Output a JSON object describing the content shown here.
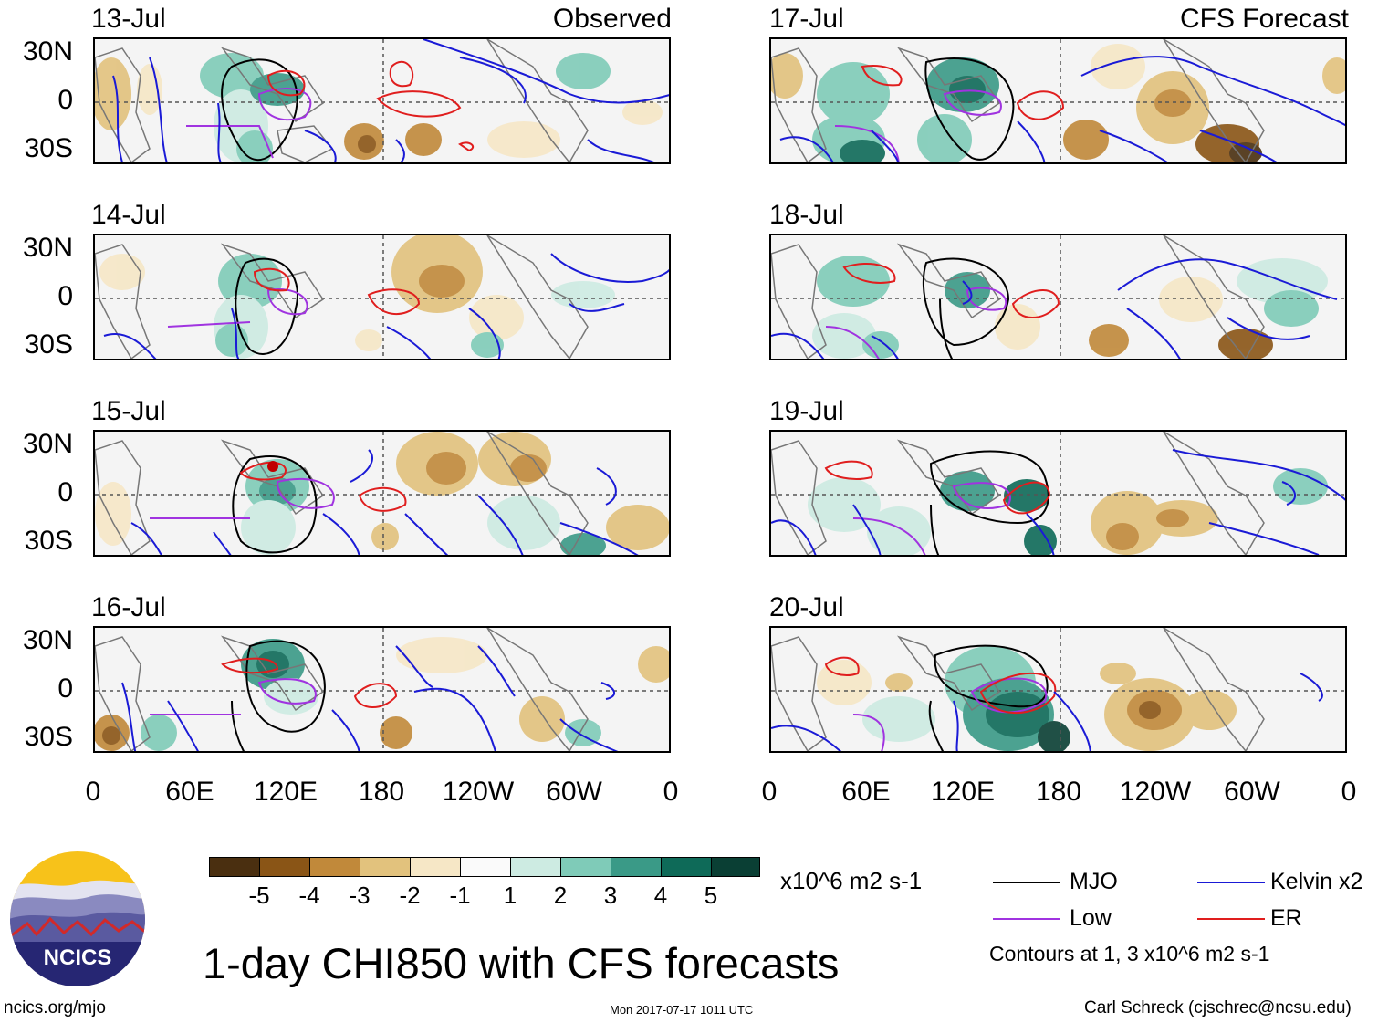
{
  "header": {
    "observed_label": "Observed",
    "forecast_label": "CFS Forecast"
  },
  "panels_left": [
    {
      "date": "13-Jul"
    },
    {
      "date": "14-Jul"
    },
    {
      "date": "15-Jul"
    },
    {
      "date": "16-Jul"
    }
  ],
  "panels_right": [
    {
      "date": "17-Jul"
    },
    {
      "date": "18-Jul"
    },
    {
      "date": "19-Jul"
    },
    {
      "date": "20-Jul"
    }
  ],
  "axes": {
    "lat_labels": [
      "30N",
      "0",
      "30S"
    ],
    "lon_labels": [
      "0",
      "60E",
      "120E",
      "180",
      "120W",
      "60W",
      "0"
    ]
  },
  "colorbar": {
    "labels": [
      "-5",
      "-4",
      "-3",
      "-2",
      "-1",
      "1",
      "2",
      "3",
      "4",
      "5"
    ],
    "units": "x10^6 m2 s-1",
    "colors": [
      "#4a2f10",
      "#8a5516",
      "#c1893a",
      "#e2c27d",
      "#f6e7c6",
      "#fafafa",
      "#cdebe2",
      "#7fcbb8",
      "#3a9a87",
      "#0e6a58",
      "#0a3f34"
    ]
  },
  "legend": {
    "mjo": "MJO",
    "kelvin": "Kelvin x2",
    "low": "Low",
    "er": "ER",
    "contours": "Contours at 1, 3 x10^6 m2 s-1",
    "colors": {
      "mjo": "#000000",
      "kelvin": "#1a1ad6",
      "low": "#a033e0",
      "er": "#e01e1e"
    }
  },
  "title": "1-day CHI850 with CFS forecasts",
  "footer": {
    "logo_text": "NCICS",
    "url": "ncics.org/mjo",
    "timestamp": "Mon 2017-07-17 1011 UTC",
    "credit": "Carl Schreck (cjschrec@ncsu.edu)"
  }
}
